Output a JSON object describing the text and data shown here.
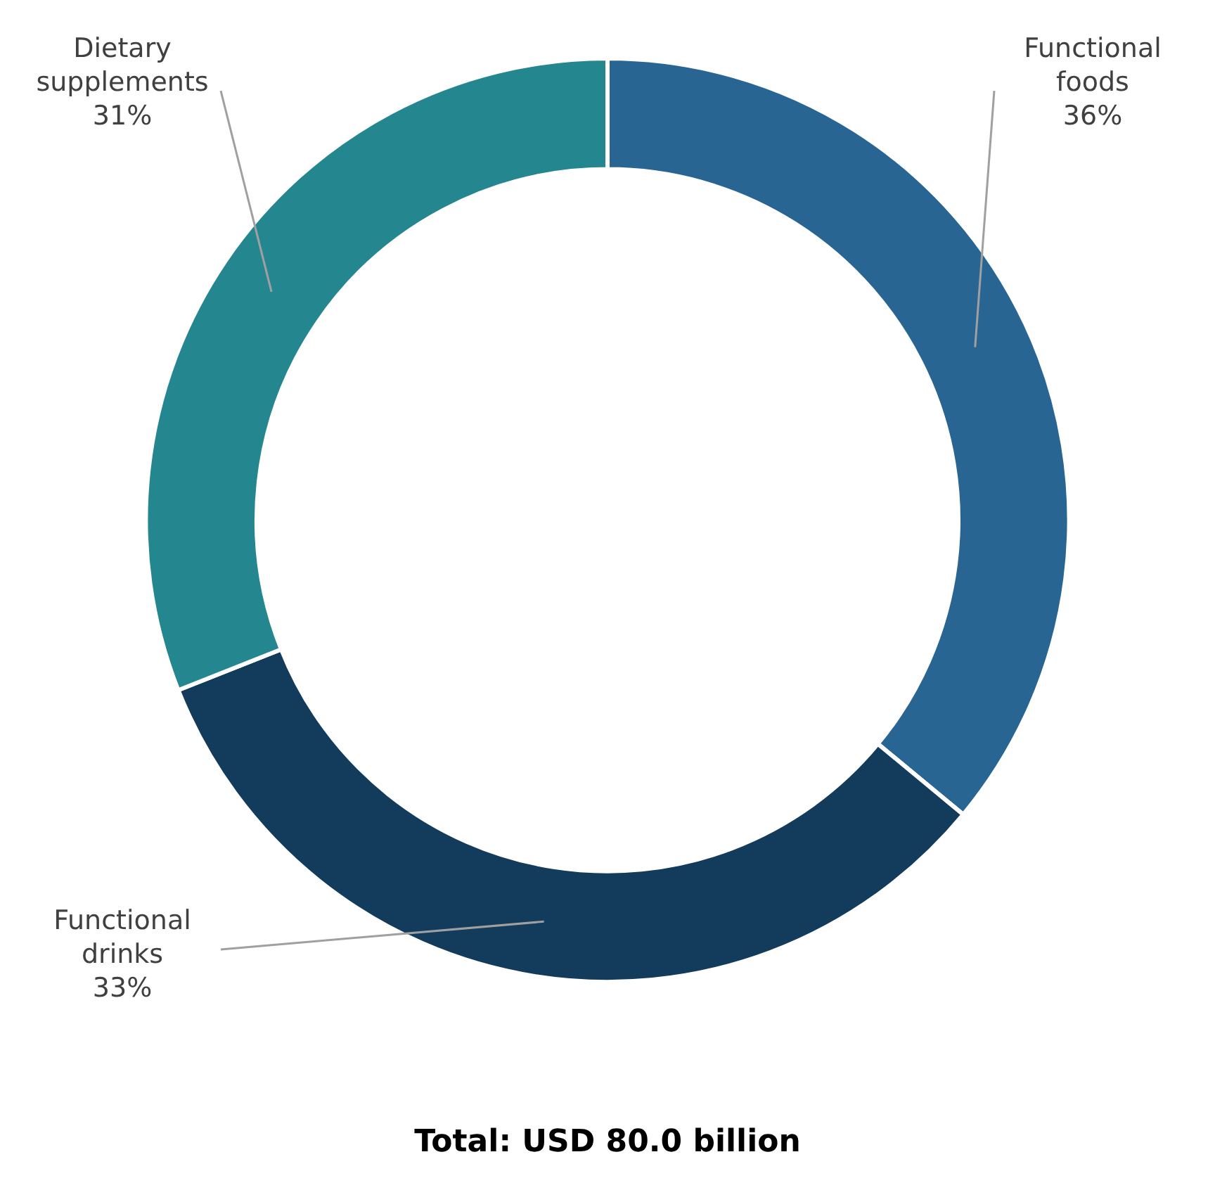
{
  "chart_data": {
    "type": "donut",
    "title": "Total: USD 80.0 billion",
    "categories": [
      "Functional foods",
      "Functional drinks",
      "Dietary supplements"
    ],
    "values": [
      36,
      33,
      31
    ],
    "colors": [
      "#286592",
      "#133b5c",
      "#24868f"
    ],
    "value_labels": [
      "36%",
      "33%",
      "31%"
    ],
    "legend": false
  }
}
